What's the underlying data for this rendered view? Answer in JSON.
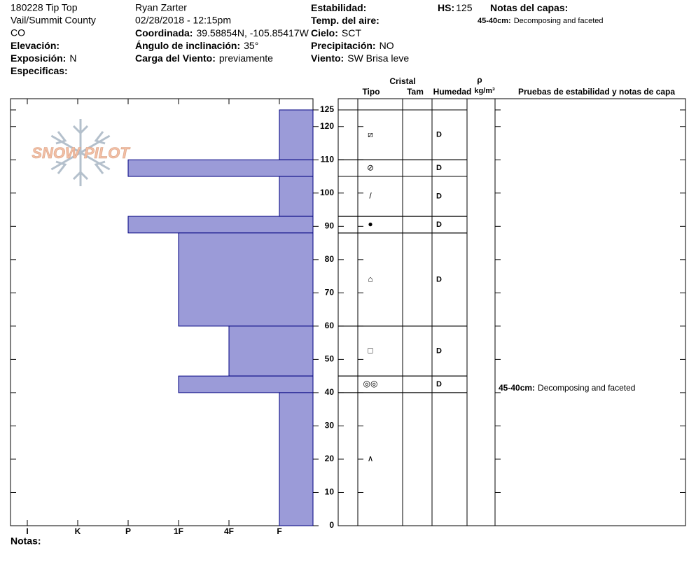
{
  "header": {
    "columns": [
      [
        {
          "text": "180228 Tip Top"
        },
        {
          "text": "Vail/Summit County"
        },
        {
          "text": "CO"
        },
        {
          "label": "Elevación:"
        },
        {
          "label": "Exposición:",
          "value": "N"
        },
        {
          "label": "Especificas:"
        }
      ],
      [
        {
          "text": "Ryan Zarter"
        },
        {
          "text": "02/28/2018 - 12:15pm"
        },
        {
          "label": "Coordinada:",
          "value": "39.58854N, -105.85417W"
        },
        {
          "label": "Ángulo de inclinación:",
          "value": "35°"
        },
        {
          "label": "Carga del Viento:",
          "value": "previamente"
        }
      ],
      [
        {
          "label": "Estabilidad:"
        },
        {
          "label": "Temp. del aire:"
        },
        {
          "label": "Cielo:",
          "value": "SCT"
        },
        {
          "label": "Precipitación:",
          "value": "NO"
        },
        {
          "label": "Viento:",
          "value": "SW Brisa leve"
        }
      ],
      [
        {
          "label": "HS:",
          "value": "125"
        }
      ],
      [
        {
          "label": "Notas del capas:"
        }
      ]
    ],
    "layer_notes": [
      {
        "range": "45-40cm:",
        "text": "Decomposing and faceted"
      }
    ],
    "logo": "SNOW PILOT"
  },
  "chart_data": {
    "type": "profile",
    "ylim": [
      0,
      125
    ],
    "yticks": [
      0,
      10,
      20,
      30,
      40,
      50,
      60,
      70,
      80,
      90,
      100,
      110,
      120,
      125
    ],
    "hardness_categories": [
      "I",
      "K",
      "P",
      "1F",
      "4F",
      "F"
    ],
    "color": "#9b9bd8",
    "edge_color": "#000080",
    "columns": {
      "crystal": "Cristal",
      "type": "Tipo",
      "size": "Tam",
      "moisture": "Humedad",
      "density": "ρ",
      "density_unit": "kg/m³",
      "tests": "Pruebas de estabilidad y notas de capa"
    },
    "layers": [
      {
        "top": 125,
        "bottom": 110,
        "hardness": "F",
        "grain": "⧄",
        "moisture": "D"
      },
      {
        "top": 110,
        "bottom": 105,
        "hardness": "P",
        "grain": "⊘",
        "moisture": "D"
      },
      {
        "top": 105,
        "bottom": 93,
        "hardness": "F",
        "grain": "/",
        "moisture": "D"
      },
      {
        "top": 93,
        "bottom": 88,
        "hardness": "P",
        "grain": "●",
        "moisture": "D"
      },
      {
        "top": 88,
        "bottom": 60,
        "hardness": "1F",
        "grain": "⌂",
        "moisture": "D"
      },
      {
        "top": 60,
        "bottom": 45,
        "hardness": "4F",
        "grain": "□",
        "moisture": "D"
      },
      {
        "top": 45,
        "bottom": 40,
        "hardness": "1F",
        "grain": "◎◎",
        "moisture": "D"
      },
      {
        "top": 40,
        "bottom": 0,
        "hardness": "F",
        "grain": "∧"
      }
    ],
    "notes_label": "Notas:"
  }
}
